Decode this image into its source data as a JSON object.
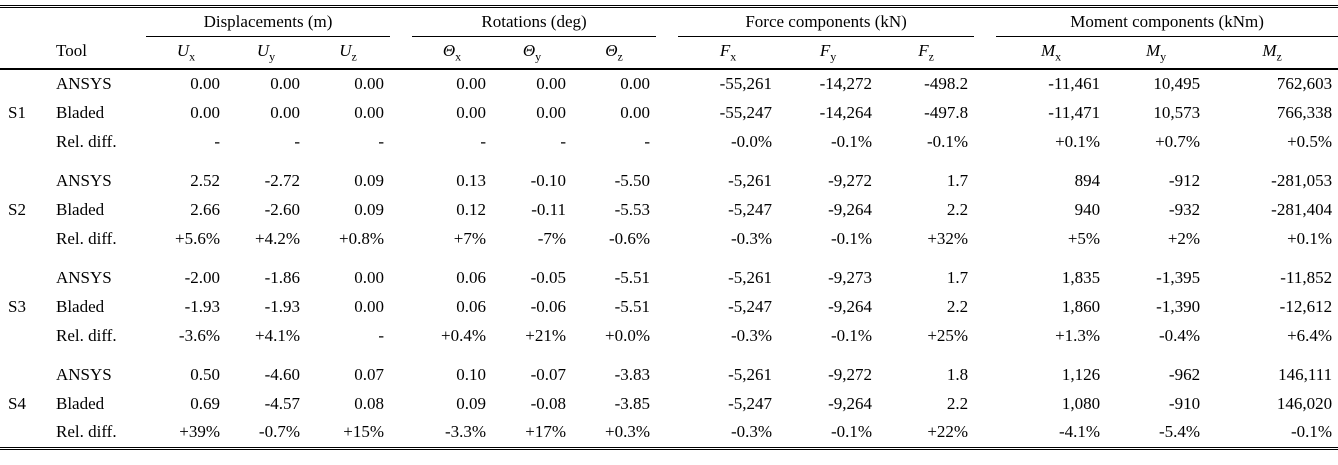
{
  "table": {
    "tool_header": "Tool",
    "column_groups": [
      {
        "label": "Displacements (m)"
      },
      {
        "label": "Rotations (deg)"
      },
      {
        "label": "Force components (kN)"
      },
      {
        "label": "Moment components (kNm)"
      }
    ],
    "columns": [
      {
        "base": "U",
        "sub": "x"
      },
      {
        "base": "U",
        "sub": "y"
      },
      {
        "base": "U",
        "sub": "z"
      },
      {
        "base": "Θ",
        "sub": "x"
      },
      {
        "base": "Θ",
        "sub": "y"
      },
      {
        "base": "Θ",
        "sub": "z"
      },
      {
        "base": "F",
        "sub": "x"
      },
      {
        "base": "F",
        "sub": "y"
      },
      {
        "base": "F",
        "sub": "z"
      },
      {
        "base": "M",
        "sub": "x"
      },
      {
        "base": "M",
        "sub": "y"
      },
      {
        "base": "M",
        "sub": "z"
      }
    ],
    "row_groups": [
      {
        "label": "S1",
        "rows": [
          {
            "tool": "ANSYS",
            "values": [
              "0.00",
              "0.00",
              "0.00",
              "0.00",
              "0.00",
              "0.00",
              "-55,261",
              "-14,272",
              "-498.2",
              "-11,461",
              "10,495",
              "762,603"
            ]
          },
          {
            "tool": "Bladed",
            "values": [
              "0.00",
              "0.00",
              "0.00",
              "0.00",
              "0.00",
              "0.00",
              "-55,247",
              "-14,264",
              "-497.8",
              "-11,471",
              "10,573",
              "766,338"
            ]
          },
          {
            "tool": "Rel. diff.",
            "values": [
              "-",
              "-",
              "-",
              "-",
              "-",
              "-",
              "-0.0%",
              "-0.1%",
              "-0.1%",
              "+0.1%",
              "+0.7%",
              "+0.5%"
            ]
          }
        ]
      },
      {
        "label": "S2",
        "rows": [
          {
            "tool": "ANSYS",
            "values": [
              "2.52",
              "-2.72",
              "0.09",
              "0.13",
              "-0.10",
              "-5.50",
              "-5,261",
              "-9,272",
              "1.7",
              "894",
              "-912",
              "-281,053"
            ]
          },
          {
            "tool": "Bladed",
            "values": [
              "2.66",
              "-2.60",
              "0.09",
              "0.12",
              "-0.11",
              "-5.53",
              "-5,247",
              "-9,264",
              "2.2",
              "940",
              "-932",
              "-281,404"
            ]
          },
          {
            "tool": "Rel. diff.",
            "values": [
              "+5.6%",
              "+4.2%",
              "+0.8%",
              "+7%",
              "-7%",
              "-0.6%",
              "-0.3%",
              "-0.1%",
              "+32%",
              "+5%",
              "+2%",
              "+0.1%"
            ]
          }
        ]
      },
      {
        "label": "S3",
        "rows": [
          {
            "tool": "ANSYS",
            "values": [
              "-2.00",
              "-1.86",
              "0.00",
              "0.06",
              "-0.05",
              "-5.51",
              "-5,261",
              "-9,273",
              "1.7",
              "1,835",
              "-1,395",
              "-11,852"
            ]
          },
          {
            "tool": "Bladed",
            "values": [
              "-1.93",
              "-1.93",
              "0.00",
              "0.06",
              "-0.06",
              "-5.51",
              "-5,247",
              "-9,264",
              "2.2",
              "1,860",
              "-1,390",
              "-12,612"
            ]
          },
          {
            "tool": "Rel. diff.",
            "values": [
              "-3.6%",
              "+4.1%",
              "-",
              "+0.4%",
              "+21%",
              "+0.0%",
              "-0.3%",
              "-0.1%",
              "+25%",
              "+1.3%",
              "-0.4%",
              "+6.4%"
            ]
          }
        ]
      },
      {
        "label": "S4",
        "rows": [
          {
            "tool": "ANSYS",
            "values": [
              "0.50",
              "-4.60",
              "0.07",
              "0.10",
              "-0.07",
              "-3.83",
              "-5,261",
              "-9,272",
              "1.8",
              "1,126",
              "-962",
              "146,111"
            ]
          },
          {
            "tool": "Bladed",
            "values": [
              "0.69",
              "-4.57",
              "0.08",
              "0.09",
              "-0.08",
              "-3.85",
              "-5,247",
              "-9,264",
              "2.2",
              "1,080",
              "-910",
              "146,020"
            ]
          },
          {
            "tool": "Rel. diff.",
            "values": [
              "+39%",
              "-0.7%",
              "+15%",
              "-3.3%",
              "+17%",
              "+0.3%",
              "-0.3%",
              "-0.1%",
              "+22%",
              "-4.1%",
              "-5.4%",
              "-0.1%"
            ]
          }
        ]
      }
    ]
  }
}
